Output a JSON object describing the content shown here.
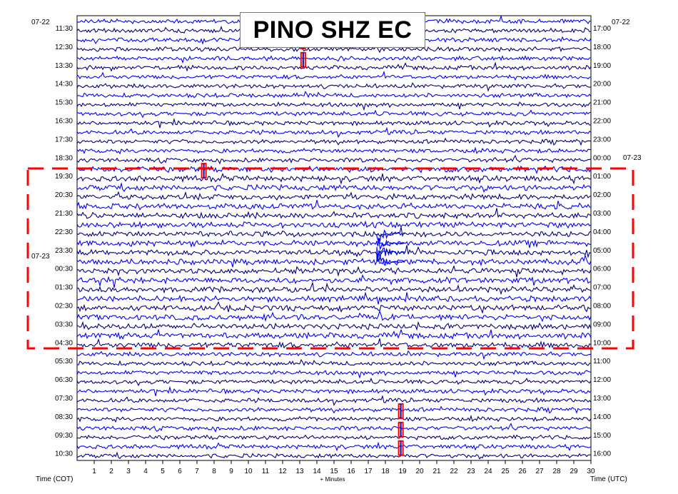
{
  "chart_data": {
    "type": "helicorder",
    "title": "PINO SHZ EC",
    "left_date_start": "07-22",
    "left_date_mid": "07-23",
    "right_date_start": "07-22",
    "right_date_mid": "07-23",
    "left_hour_labels": [
      "11:30",
      "12:30",
      "13:30",
      "14:30",
      "15:30",
      "16:30",
      "17:30",
      "18:30",
      "19:30",
      "20:30",
      "21:30",
      "22:30",
      "23:30",
      "00:30",
      "01:30",
      "02:30",
      "03:30",
      "04:30",
      "05:30",
      "06:30",
      "07:30",
      "08:30",
      "09:30",
      "10:30"
    ],
    "right_hour_labels": [
      "17:00",
      "18:00",
      "19:00",
      "20:00",
      "21:00",
      "22:00",
      "23:00",
      "00:00",
      "01:00",
      "02:00",
      "03:00",
      "04:00",
      "05:00",
      "06:00",
      "07:00",
      "08:00",
      "09:00",
      "10:00",
      "11:00",
      "12:00",
      "13:00",
      "14:00",
      "15:00",
      "16:00"
    ],
    "x_ticks": [
      "1",
      "2",
      "3",
      "4",
      "5",
      "6",
      "7",
      "8",
      "9",
      "10",
      "11",
      "12",
      "13",
      "14",
      "15",
      "16",
      "17",
      "18",
      "19",
      "20",
      "21",
      "22",
      "23",
      "24",
      "25",
      "26",
      "27",
      "28",
      "29",
      "30"
    ],
    "xlabel": "+ Minutes",
    "left_axis_label": "Time (COT)",
    "right_axis_label": "Time (UTC)",
    "xlim": [
      0,
      30
    ],
    "traces_per_hour": 2,
    "trace_colors": [
      "#0000ff",
      "#000080",
      "#0000ff",
      "#000080"
    ],
    "highlight_box": {
      "color": "#ff0000",
      "style": "dashed",
      "from_label": "19:30",
      "to_label": "04:30"
    },
    "clipped_events": [
      {
        "label": "12:30",
        "minute": 13.2
      },
      {
        "label": "13:30",
        "minute": 13.2
      },
      {
        "label": "19:30",
        "minute": 7.4
      },
      {
        "label": "08:30",
        "minute": 18.9
      },
      {
        "label": "09:30",
        "minute": 18.9
      },
      {
        "label": "10:30",
        "minute": 18.9
      }
    ],
    "notable_events": [
      {
        "label": "22:30",
        "minute": 17.5
      },
      {
        "label": "23:30",
        "minute": 17.5
      }
    ]
  }
}
